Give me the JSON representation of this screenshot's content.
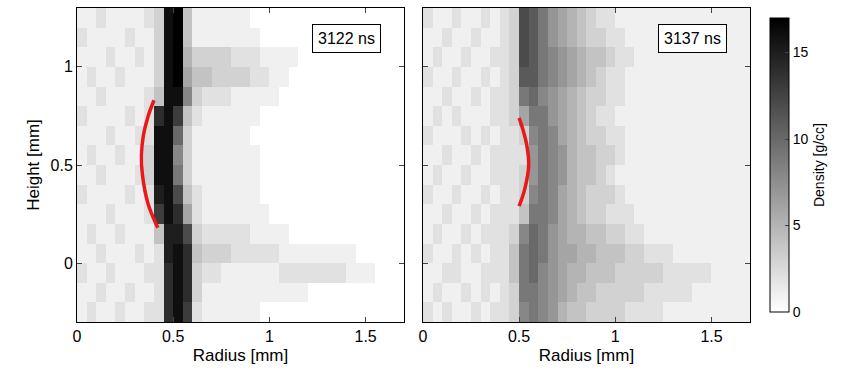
{
  "chart_data": [
    {
      "type": "heatmap",
      "title": "3122 ns",
      "xlabel": "Radius [mm]",
      "ylabel": "Height [mm]",
      "xlim": [
        0,
        1.7
      ],
      "xticks": [
        0,
        0.5,
        1,
        1.5
      ],
      "ylim": [
        -0.3,
        1.3
      ],
      "yticks": [
        0,
        0.5,
        1
      ],
      "x": [
        0.025,
        0.075,
        0.125,
        0.175,
        0.225,
        0.275,
        0.325,
        0.375,
        0.425,
        0.475,
        0.525,
        0.575,
        0.625,
        0.675,
        0.725,
        0.775,
        0.825,
        0.875,
        0.925,
        0.975,
        1.025,
        1.075,
        1.125,
        1.175,
        1.225,
        1.275,
        1.325,
        1.375,
        1.425,
        1.475,
        1.525,
        1.575,
        1.625,
        1.675
      ],
      "y": [
        -0.25,
        -0.15,
        -0.05,
        0.05,
        0.15,
        0.25,
        0.35,
        0.45,
        0.55,
        0.65,
        0.75,
        0.85,
        0.95,
        1.05,
        1.15,
        1.25
      ],
      "cells": [
        [
          1,
          2,
          1,
          1,
          2,
          1,
          1,
          2,
          2,
          14,
          16,
          13,
          2,
          1,
          1,
          1,
          1,
          1,
          1,
          0,
          0,
          0,
          0,
          0,
          0,
          0,
          0,
          0,
          0,
          0,
          0,
          0,
          0,
          0
        ],
        [
          1,
          1,
          2,
          1,
          1,
          2,
          1,
          1,
          2,
          14,
          16,
          14,
          3,
          1,
          1,
          1,
          1,
          1,
          1,
          1,
          1,
          1,
          1,
          1,
          0,
          0,
          0,
          0,
          0,
          0,
          0,
          0,
          0,
          0
        ],
        [
          2,
          1,
          1,
          2,
          1,
          1,
          1,
          2,
          2,
          14,
          16,
          14,
          3,
          2,
          2,
          1,
          1,
          1,
          1,
          1,
          1,
          2,
          2,
          2,
          2,
          2,
          2,
          2,
          1,
          1,
          1,
          0,
          0,
          0
        ],
        [
          1,
          1,
          2,
          1,
          1,
          1,
          2,
          1,
          2,
          15,
          16,
          14,
          4,
          3,
          3,
          3,
          2,
          2,
          2,
          2,
          2,
          1,
          1,
          1,
          1,
          1,
          1,
          1,
          1,
          0,
          0,
          0,
          0,
          0
        ],
        [
          1,
          2,
          1,
          1,
          2,
          1,
          1,
          1,
          4,
          15,
          15,
          12,
          3,
          2,
          2,
          2,
          2,
          2,
          1,
          1,
          1,
          1,
          0,
          0,
          0,
          0,
          0,
          0,
          0,
          0,
          0,
          0,
          0,
          0
        ],
        [
          1,
          1,
          1,
          2,
          1,
          1,
          1,
          2,
          13,
          16,
          14,
          6,
          2,
          1,
          1,
          1,
          1,
          1,
          1,
          1,
          0,
          0,
          0,
          0,
          0,
          0,
          0,
          0,
          0,
          0,
          0,
          0,
          0,
          0
        ],
        [
          2,
          1,
          1,
          1,
          1,
          2,
          1,
          2,
          15,
          16,
          12,
          4,
          2,
          1,
          1,
          1,
          1,
          1,
          1,
          0,
          0,
          0,
          0,
          0,
          0,
          0,
          0,
          0,
          0,
          0,
          0,
          0,
          0,
          0
        ],
        [
          1,
          1,
          2,
          1,
          1,
          1,
          2,
          3,
          16,
          16,
          9,
          3,
          1,
          1,
          1,
          1,
          1,
          1,
          1,
          0,
          0,
          0,
          0,
          0,
          0,
          0,
          0,
          0,
          0,
          0,
          0,
          0,
          0,
          0
        ],
        [
          1,
          2,
          1,
          1,
          2,
          1,
          1,
          3,
          16,
          16,
          8,
          3,
          1,
          1,
          1,
          1,
          1,
          1,
          1,
          0,
          0,
          0,
          0,
          0,
          0,
          0,
          0,
          0,
          0,
          0,
          0,
          0,
          0,
          0
        ],
        [
          1,
          1,
          1,
          2,
          1,
          1,
          2,
          2,
          16,
          16,
          10,
          3,
          1,
          1,
          1,
          1,
          1,
          1,
          0,
          0,
          0,
          0,
          0,
          0,
          0,
          0,
          0,
          0,
          0,
          0,
          0,
          0,
          0,
          0
        ],
        [
          2,
          1,
          1,
          1,
          1,
          2,
          1,
          2,
          14,
          16,
          13,
          4,
          2,
          1,
          1,
          1,
          1,
          1,
          1,
          0,
          0,
          0,
          0,
          0,
          0,
          0,
          0,
          0,
          0,
          0,
          0,
          0,
          0,
          0
        ],
        [
          1,
          1,
          2,
          1,
          1,
          1,
          1,
          2,
          4,
          16,
          16,
          8,
          3,
          2,
          2,
          2,
          1,
          1,
          1,
          1,
          1,
          0,
          0,
          0,
          0,
          0,
          0,
          0,
          0,
          0,
          0,
          0,
          0,
          0
        ],
        [
          1,
          2,
          1,
          1,
          2,
          1,
          1,
          1,
          3,
          16,
          17,
          6,
          4,
          4,
          3,
          3,
          3,
          3,
          2,
          2,
          1,
          1,
          0,
          0,
          0,
          0,
          0,
          0,
          0,
          0,
          0,
          0,
          0,
          0
        ],
        [
          1,
          1,
          1,
          2,
          1,
          1,
          2,
          1,
          3,
          16,
          17,
          5,
          3,
          3,
          3,
          3,
          2,
          2,
          2,
          1,
          1,
          1,
          1,
          0,
          0,
          0,
          0,
          0,
          0,
          0,
          0,
          0,
          0,
          0
        ],
        [
          2,
          1,
          1,
          1,
          1,
          2,
          1,
          1,
          3,
          16,
          17,
          4,
          1,
          1,
          1,
          1,
          1,
          1,
          1,
          0,
          0,
          0,
          0,
          0,
          0,
          0,
          0,
          0,
          0,
          0,
          0,
          0,
          0,
          0
        ],
        [
          1,
          1,
          2,
          1,
          1,
          1,
          1,
          2,
          3,
          16,
          17,
          4,
          1,
          1,
          1,
          1,
          1,
          1,
          0,
          0,
          0,
          0,
          0,
          0,
          0,
          0,
          0,
          0,
          0,
          0,
          0,
          0,
          0,
          0
        ]
      ],
      "arc": {
        "color": "#e8191b",
        "x": [
          0.42,
          0.37,
          0.34,
          0.335,
          0.345,
          0.37,
          0.4
        ],
        "y": [
          0.18,
          0.3,
          0.45,
          0.55,
          0.65,
          0.75,
          0.83
        ]
      }
    },
    {
      "type": "heatmap",
      "title": "3137 ns",
      "xlabel": "Radius [mm]",
      "xlim": [
        0,
        1.7
      ],
      "xticks": [
        0,
        0.5,
        1,
        1.5
      ],
      "ylim": [
        -0.3,
        1.3
      ],
      "yticks": [
        0,
        0.5,
        1
      ],
      "tick_labels": "x",
      "x": [
        0.025,
        0.075,
        0.125,
        0.175,
        0.225,
        0.275,
        0.325,
        0.375,
        0.425,
        0.475,
        0.525,
        0.575,
        0.625,
        0.675,
        0.725,
        0.775,
        0.825,
        0.875,
        0.925,
        0.975,
        1.025,
        1.075,
        1.125,
        1.175,
        1.225,
        1.275,
        1.325,
        1.375,
        1.425,
        1.475,
        1.525,
        1.575,
        1.625,
        1.675
      ],
      "y": [
        -0.25,
        -0.15,
        -0.05,
        0.05,
        0.15,
        0.25,
        0.35,
        0.45,
        0.55,
        0.65,
        0.75,
        0.85,
        0.95,
        1.05,
        1.15,
        1.25
      ],
      "cells": [
        [
          2,
          1,
          2,
          1,
          1,
          2,
          1,
          2,
          2,
          3,
          8,
          9,
          8,
          7,
          5,
          4,
          4,
          3,
          3,
          3,
          3,
          2,
          2,
          2,
          2,
          1,
          1,
          1,
          1,
          1,
          1,
          1,
          1,
          1
        ],
        [
          1,
          2,
          1,
          1,
          2,
          1,
          2,
          1,
          2,
          3,
          9,
          9,
          8,
          7,
          6,
          5,
          4,
          4,
          3,
          3,
          3,
          3,
          3,
          2,
          2,
          2,
          2,
          2,
          1,
          1,
          1,
          1,
          1,
          1
        ],
        [
          1,
          1,
          2,
          2,
          1,
          1,
          2,
          2,
          2,
          4,
          9,
          10,
          8,
          7,
          6,
          5,
          5,
          4,
          4,
          4,
          3,
          3,
          3,
          3,
          3,
          2,
          2,
          2,
          2,
          2,
          1,
          1,
          1,
          1
        ],
        [
          2,
          1,
          1,
          2,
          1,
          2,
          1,
          2,
          2,
          4,
          9,
          10,
          9,
          7,
          6,
          6,
          5,
          5,
          4,
          4,
          4,
          3,
          3,
          2,
          2,
          2,
          1,
          1,
          1,
          1,
          1,
          1,
          1,
          1
        ],
        [
          1,
          2,
          1,
          1,
          2,
          1,
          2,
          2,
          2,
          3,
          8,
          10,
          9,
          7,
          6,
          5,
          5,
          4,
          4,
          3,
          3,
          2,
          2,
          1,
          1,
          1,
          1,
          1,
          1,
          1,
          1,
          1,
          1,
          1
        ],
        [
          1,
          1,
          2,
          1,
          1,
          2,
          1,
          2,
          2,
          2,
          4,
          9,
          9,
          8,
          6,
          5,
          4,
          3,
          3,
          2,
          2,
          2,
          1,
          1,
          1,
          1,
          1,
          1,
          1,
          1,
          1,
          1,
          1,
          1
        ],
        [
          2,
          1,
          1,
          2,
          1,
          1,
          2,
          1,
          2,
          2,
          3,
          8,
          9,
          8,
          6,
          5,
          4,
          3,
          3,
          3,
          2,
          1,
          1,
          1,
          1,
          1,
          1,
          1,
          1,
          1,
          1,
          1,
          1,
          1
        ],
        [
          1,
          2,
          1,
          1,
          2,
          1,
          1,
          2,
          2,
          2,
          3,
          7,
          9,
          8,
          7,
          5,
          4,
          4,
          3,
          2,
          1,
          1,
          1,
          1,
          1,
          1,
          1,
          1,
          1,
          1,
          1,
          1,
          1,
          1
        ],
        [
          1,
          1,
          2,
          1,
          1,
          2,
          1,
          2,
          2,
          2,
          2,
          7,
          9,
          8,
          7,
          5,
          4,
          4,
          3,
          3,
          2,
          1,
          1,
          1,
          1,
          1,
          1,
          1,
          1,
          1,
          1,
          1,
          1,
          1
        ],
        [
          2,
          1,
          1,
          1,
          2,
          1,
          2,
          1,
          2,
          2,
          3,
          8,
          9,
          8,
          6,
          5,
          4,
          3,
          3,
          2,
          2,
          1,
          1,
          1,
          1,
          1,
          1,
          1,
          1,
          1,
          1,
          1,
          1,
          1
        ],
        [
          1,
          2,
          1,
          2,
          1,
          1,
          1,
          2,
          2,
          3,
          6,
          9,
          9,
          7,
          6,
          5,
          4,
          3,
          2,
          2,
          1,
          1,
          1,
          1,
          1,
          1,
          1,
          1,
          1,
          1,
          1,
          1,
          1,
          1
        ],
        [
          1,
          1,
          2,
          1,
          1,
          2,
          1,
          2,
          2,
          3,
          9,
          10,
          8,
          7,
          6,
          5,
          4,
          3,
          3,
          2,
          2,
          1,
          1,
          1,
          1,
          1,
          1,
          1,
          1,
          1,
          1,
          1,
          1,
          1
        ],
        [
          2,
          1,
          1,
          2,
          1,
          1,
          2,
          1,
          2,
          3,
          11,
          11,
          9,
          8,
          7,
          6,
          5,
          4,
          3,
          2,
          2,
          1,
          1,
          1,
          1,
          1,
          1,
          1,
          1,
          1,
          1,
          1,
          1,
          1
        ],
        [
          1,
          2,
          1,
          1,
          2,
          1,
          1,
          2,
          2,
          3,
          12,
          11,
          9,
          8,
          7,
          6,
          5,
          4,
          4,
          3,
          2,
          2,
          1,
          1,
          1,
          1,
          1,
          1,
          1,
          1,
          1,
          1,
          1,
          1
        ],
        [
          1,
          1,
          2,
          1,
          1,
          2,
          1,
          1,
          2,
          3,
          12,
          11,
          9,
          7,
          6,
          5,
          4,
          3,
          3,
          2,
          2,
          1,
          1,
          1,
          1,
          1,
          1,
          1,
          1,
          1,
          1,
          1,
          1,
          1
        ],
        [
          2,
          1,
          1,
          2,
          1,
          1,
          2,
          1,
          2,
          3,
          12,
          11,
          9,
          7,
          6,
          5,
          4,
          3,
          2,
          2,
          1,
          1,
          1,
          1,
          1,
          1,
          1,
          1,
          1,
          1,
          1,
          1,
          1,
          1
        ]
      ],
      "arc": {
        "color": "#e8191b",
        "x": [
          0.5,
          0.53,
          0.55,
          0.54,
          0.52,
          0.5
        ],
        "y": [
          0.29,
          0.38,
          0.5,
          0.6,
          0.68,
          0.74
        ]
      },
      "colorbar": {
        "title": "Density [g/cc]",
        "range": [
          0,
          17
        ],
        "ticks": [
          0,
          5,
          10,
          15
        ]
      }
    }
  ]
}
